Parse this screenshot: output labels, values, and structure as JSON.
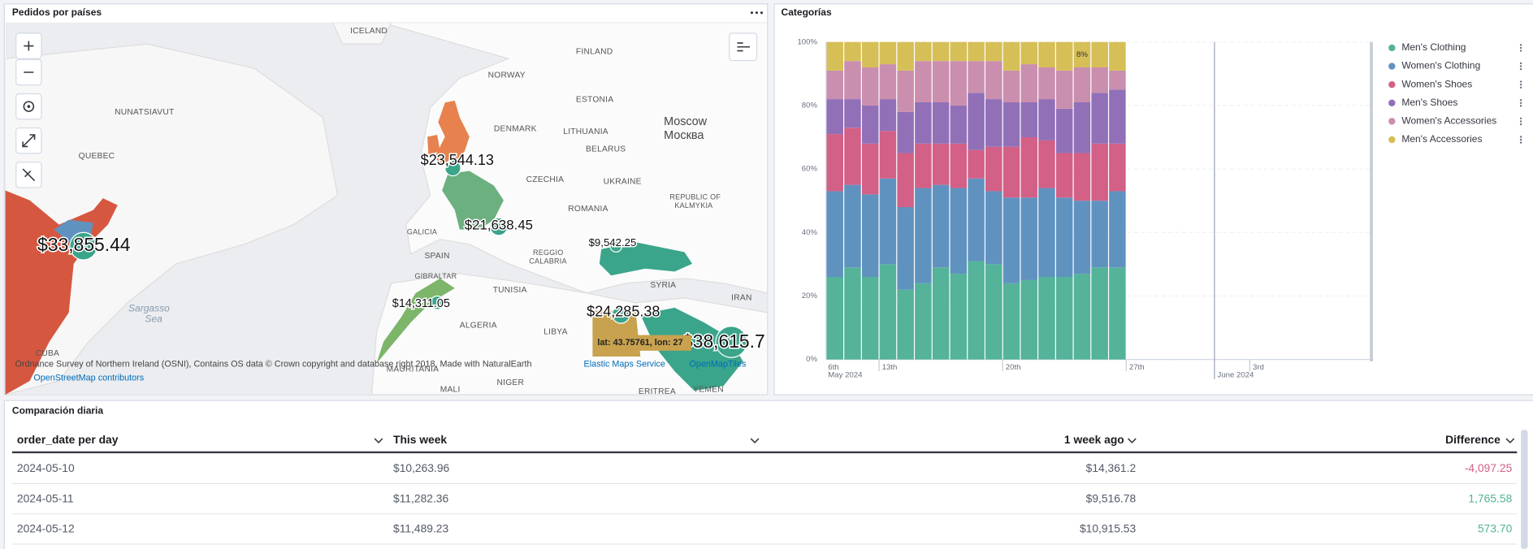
{
  "map": {
    "title": "Pedidos por países",
    "places": [
      "ICELAND",
      "FINLAND",
      "NORWAY",
      "ESTONIA",
      "NUNATSIAVUT",
      "DENMARK",
      "LITHUANIA",
      "Moscow",
      "Москва",
      "QUEBEC",
      "BELARUS",
      "CZECHIA",
      "UKRAINE",
      "ROMANIA",
      "REPUBLIC OF",
      "KALMYKIA",
      "GALICIA",
      "SPAIN",
      "REGGIO",
      "CALABRIA",
      "GIBRALTAR",
      "TUNISIA",
      "SYRIA",
      "ALGERIA",
      "LIBYA",
      "IRAN",
      "CUBA",
      "MAURITANIA",
      "MALI",
      "NIGER",
      "ERITREA",
      "YEMEN",
      "Sargasso",
      "Sea"
    ],
    "value_labels": [
      "$23,544.13",
      "$33,855.44",
      "$21,638.45",
      "$9,542.25",
      "$14,311.05",
      "$24,285.38",
      "$38,615.7"
    ],
    "tooltip": "lat: 43.75761, lon: 27",
    "attribution": [
      "Ordnance Survey of Northern Ireland (OSNI), Contains OS data © Crown copyright and database right 2018, Made with NaturalEarth",
      "Elastic Maps Service",
      "OpenMapTiles",
      "OpenStreetMap contributors"
    ]
  },
  "chart_data": {
    "type": "bar",
    "stacked": true,
    "title": "Categorías",
    "x": [
      "2024-05-10",
      "2024-05-11",
      "2024-05-12",
      "2024-05-13",
      "2024-05-14",
      "2024-05-15",
      "2024-05-16",
      "2024-05-17",
      "2024-05-18",
      "2024-05-19",
      "2024-05-20",
      "2024-05-21",
      "2024-05-22",
      "2024-05-23",
      "2024-05-24",
      "2024-05-25",
      "2024-05-26"
    ],
    "xlim": [
      "2024-05-10",
      "2024-06-10"
    ],
    "xticks": [
      {
        "value": "2024-05-13",
        "label": "13th"
      },
      {
        "value": "2024-05-20",
        "label": "20th"
      },
      {
        "value": "2024-05-27",
        "label": "27th"
      },
      {
        "value": "2024-06-03",
        "label": "3rd"
      }
    ],
    "xticks_month": [
      {
        "value": "2024-06-01",
        "label": "June 2024"
      }
    ],
    "x_start_labels": [
      "6th",
      "May 2024"
    ],
    "ylim": [
      0,
      100
    ],
    "yticks": [
      {
        "value": 0,
        "label": "0%"
      },
      {
        "value": 20,
        "label": "20%"
      },
      {
        "value": 40,
        "label": "40%"
      },
      {
        "value": 60,
        "label": "60%"
      },
      {
        "value": 80,
        "label": "80%"
      },
      {
        "value": 100,
        "label": "100%"
      }
    ],
    "grid": true,
    "legend": "right",
    "series": [
      {
        "name": "Men's Clothing",
        "color": "#54b399",
        "values": [
          26,
          29,
          26,
          30,
          22,
          24,
          29,
          27,
          31,
          30,
          24,
          25,
          26,
          26,
          27,
          29,
          29
        ]
      },
      {
        "name": "Women's Clothing",
        "color": "#6092c0",
        "values": [
          27,
          26,
          26,
          27,
          26,
          30,
          26,
          27,
          26,
          23,
          27,
          26,
          28,
          25,
          23,
          21,
          24
        ]
      },
      {
        "name": "Women's Shoes",
        "color": "#d36086",
        "values": [
          18,
          18,
          16,
          15,
          17,
          14,
          13,
          14,
          9,
          14,
          16,
          19,
          15,
          14,
          15,
          18,
          15
        ]
      },
      {
        "name": "Men's Shoes",
        "color": "#9170b8",
        "values": [
          11,
          9,
          12,
          10,
          13,
          13,
          13,
          12,
          18,
          15,
          14,
          11,
          13,
          14,
          16,
          16,
          17
        ]
      },
      {
        "name": "Women's Accessories",
        "color": "#ca8eae",
        "values": [
          9,
          12,
          12,
          11,
          13,
          13,
          13,
          14,
          10,
          12,
          10,
          12,
          10,
          12,
          11,
          8,
          6
        ]
      },
      {
        "name": "Men's Accessories",
        "color": "#d6bf57",
        "values": [
          9,
          6,
          8,
          7,
          9,
          6,
          6,
          6,
          6,
          6,
          9,
          7,
          8,
          9,
          8,
          8,
          9
        ],
        "value_labels": [
          null,
          null,
          null,
          null,
          null,
          null,
          null,
          null,
          null,
          null,
          null,
          null,
          null,
          null,
          "8%",
          null,
          null
        ]
      }
    ]
  },
  "table": {
    "title": "Comparación diaria",
    "columns": [
      "order_date per day",
      "This week",
      "1 week ago",
      "Difference"
    ],
    "rows": [
      [
        "2024-05-10",
        "$10,263.96",
        "$14,361.2",
        "-4,097.25"
      ],
      [
        "2024-05-11",
        "$11,282.36",
        "$9,516.78",
        "1,765.58"
      ],
      [
        "2024-05-12",
        "$11,489.23",
        "$10,915.53",
        "573.70"
      ]
    ],
    "difference_colors": [
      "#d36086",
      "#54b399",
      "#54b399"
    ]
  }
}
